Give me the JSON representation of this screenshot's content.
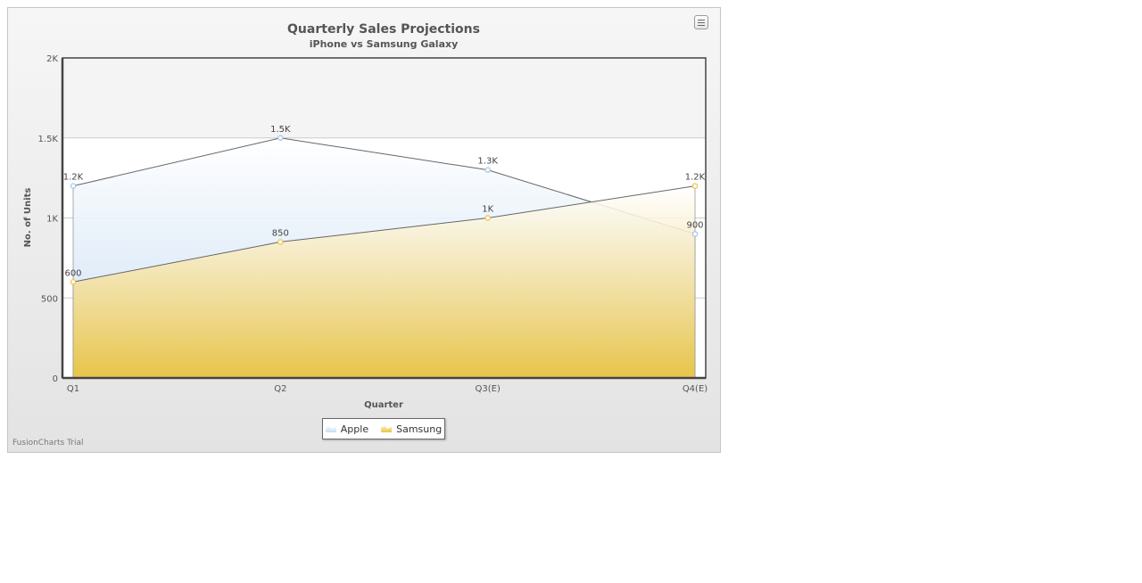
{
  "chart_data": {
    "type": "area",
    "title": "Quarterly Sales Projections",
    "subtitle": "iPhone vs Samsung Galaxy",
    "xlabel": "Quarter",
    "ylabel": "No. of Units",
    "categories": [
      "Q1",
      "Q2",
      "Q3(E)",
      "Q4(E)"
    ],
    "ylim": [
      0,
      2000
    ],
    "yticks": [
      {
        "value": 0,
        "label": "0"
      },
      {
        "value": 500,
        "label": "500"
      },
      {
        "value": 1000,
        "label": "1K"
      },
      {
        "value": 1500,
        "label": "1.5K"
      },
      {
        "value": 2000,
        "label": "2K"
      }
    ],
    "grid": true,
    "legend_position": "bottom",
    "series": [
      {
        "name": "Apple",
        "values": [
          1200,
          1500,
          1300,
          900
        ],
        "labels": [
          "1.2K",
          "1.5K",
          "1.3K",
          "900"
        ],
        "color": "#cfe2f5",
        "anchor_color": "#9cc4e8"
      },
      {
        "name": "Samsung",
        "values": [
          600,
          850,
          1000,
          1200
        ],
        "labels": [
          "600",
          "850",
          "1K",
          "1.2K"
        ],
        "color": "#e8c44a",
        "anchor_color": "#f0c040"
      }
    ]
  },
  "menu_icon": "menu-icon",
  "watermark": "FusionCharts Trial"
}
